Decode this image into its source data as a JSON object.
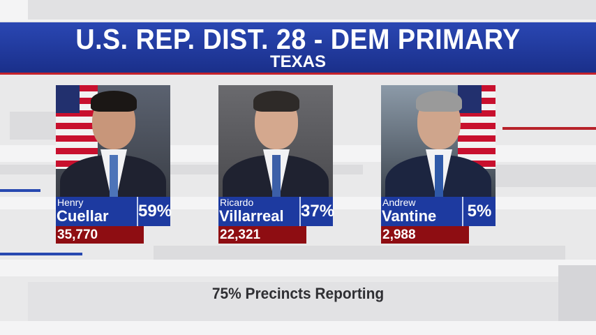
{
  "banner": {
    "title": "U.S. REP. DIST. 28 - DEM PRIMARY",
    "subtitle": "TEXAS"
  },
  "candidates": [
    {
      "first": "Henry",
      "last": "Cuellar",
      "percent": "59%",
      "votes": "35,770",
      "hair_color": "#1b1715",
      "flag": "left"
    },
    {
      "first": "Ricardo",
      "last": "Villarreal",
      "percent": "37%",
      "votes": "22,321",
      "hair_color": "#2e2a28",
      "flag": "none"
    },
    {
      "first": "Andrew",
      "last": "Vantine",
      "percent": "5%",
      "votes": "2,988",
      "hair_color": "#9a9a9a",
      "flag": "right"
    }
  ],
  "footer": {
    "reporting": "75% Precincts Reporting"
  },
  "colors": {
    "banner_blue": "#1d3aa0",
    "accent_red": "#c5222b",
    "votes_red": "#8e0d12"
  }
}
